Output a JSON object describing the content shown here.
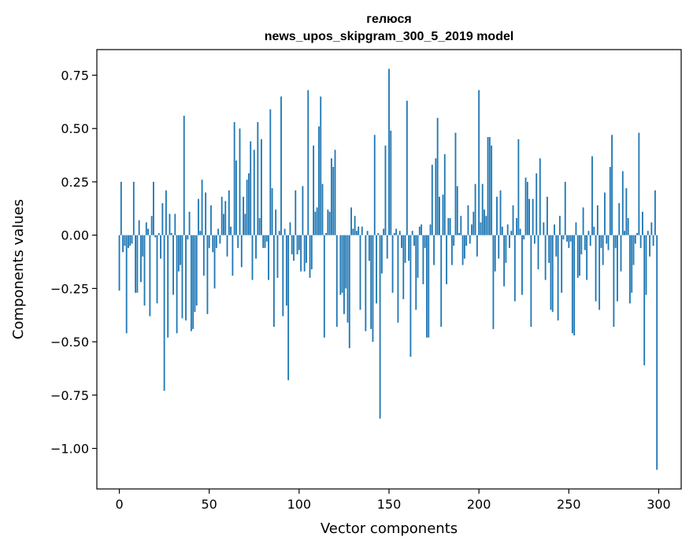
{
  "chart_data": {
    "type": "bar",
    "title": "гелюся",
    "subtitle": "news_upos_skipgram_300_5_2019 model",
    "xlabel": "Vector components",
    "ylabel": "Components values",
    "xlim": [
      -12.5,
      312.5
    ],
    "ylim": [
      -1.19,
      0.87
    ],
    "xticks": [
      0,
      50,
      100,
      150,
      200,
      250,
      300
    ],
    "yticks": [
      0.75,
      0.5,
      0.25,
      0.0,
      -0.25,
      -0.5,
      -0.75,
      -1.0
    ],
    "xtick_labels": [
      "0",
      "50",
      "100",
      "150",
      "200",
      "250",
      "300"
    ],
    "ytick_labels": [
      "0.75",
      "0.50",
      "0.25",
      "0.00",
      "−0.25",
      "−0.50",
      "−0.75",
      "−1.00"
    ],
    "bar_color": "#1f77b4",
    "values": [
      -0.26,
      0.25,
      -0.08,
      -0.05,
      -0.46,
      -0.06,
      -0.05,
      -0.04,
      0.25,
      -0.27,
      -0.27,
      0.07,
      -0.22,
      -0.1,
      -0.33,
      0.06,
      0.03,
      -0.38,
      0.09,
      0.25,
      -0.01,
      -0.32,
      0.01,
      -0.11,
      0.15,
      -0.73,
      0.21,
      -0.48,
      0.1,
      0.01,
      -0.28,
      0.1,
      -0.46,
      -0.17,
      -0.14,
      -0.39,
      0.56,
      -0.4,
      -0.02,
      0.11,
      -0.45,
      -0.44,
      -0.36,
      -0.33,
      0.17,
      0.02,
      0.26,
      -0.19,
      0.2,
      -0.37,
      -0.06,
      0.14,
      -0.08,
      -0.25,
      -0.06,
      0.03,
      -0.04,
      0.18,
      0.1,
      0.16,
      -0.1,
      0.21,
      0.04,
      -0.19,
      0.53,
      0.35,
      -0.06,
      0.5,
      -0.15,
      0.18,
      0.1,
      0.26,
      0.29,
      0.44,
      -0.21,
      0.4,
      -0.11,
      0.53,
      0.08,
      0.45,
      -0.06,
      -0.06,
      -0.03,
      -0.21,
      0.59,
      0.22,
      -0.43,
      0.12,
      -0.2,
      0.02,
      0.65,
      -0.38,
      0.03,
      -0.33,
      -0.68,
      0.06,
      -0.09,
      -0.12,
      0.21,
      -0.09,
      -0.07,
      -0.17,
      0.23,
      -0.17,
      -0.13,
      0.68,
      -0.2,
      -0.16,
      0.42,
      0.11,
      0.13,
      0.51,
      0.65,
      0.24,
      -0.48,
      0.01,
      0.12,
      0.11,
      0.36,
      0.32,
      0.4,
      -0.43,
      0.0,
      -0.28,
      -0.27,
      -0.37,
      -0.25,
      -0.41,
      -0.53,
      0.13,
      0.03,
      0.09,
      0.02,
      0.04,
      -0.35,
      0.04,
      0.0,
      -0.45,
      0.02,
      -0.12,
      -0.44,
      -0.5,
      0.47,
      -0.32,
      0.01,
      -0.86,
      -0.18,
      0.03,
      0.42,
      -0.11,
      0.78,
      0.49,
      -0.27,
      0.01,
      0.03,
      -0.41,
      0.02,
      -0.06,
      -0.3,
      -0.13,
      0.63,
      -0.12,
      -0.57,
      0.02,
      -0.05,
      -0.35,
      -0.2,
      0.04,
      0.05,
      -0.23,
      -0.06,
      -0.48,
      -0.48,
      0.05,
      0.33,
      -0.14,
      0.36,
      0.55,
      0.18,
      -0.43,
      0.19,
      0.38,
      -0.23,
      0.08,
      0.08,
      -0.14,
      -0.05,
      0.48,
      0.23,
      0.01,
      0.09,
      -0.14,
      -0.11,
      -0.05,
      0.14,
      -0.04,
      0.05,
      0.11,
      0.24,
      -0.1,
      0.68,
      0.06,
      0.24,
      0.12,
      0.09,
      0.46,
      0.46,
      0.42,
      -0.44,
      -0.17,
      0.18,
      -0.11,
      0.21,
      0.04,
      -0.24,
      -0.13,
      0.05,
      -0.06,
      0.02,
      0.14,
      -0.31,
      0.08,
      0.45,
      0.03,
      -0.28,
      -0.02,
      0.27,
      0.25,
      0.17,
      -0.43,
      0.17,
      -0.04,
      0.29,
      -0.16,
      0.36,
      0.0,
      0.06,
      -0.21,
      0.18,
      -0.13,
      -0.35,
      -0.36,
      0.05,
      -0.1,
      -0.4,
      0.09,
      -0.27,
      -0.02,
      0.25,
      -0.03,
      -0.06,
      -0.03,
      -0.46,
      -0.47,
      0.06,
      -0.2,
      -0.19,
      -0.09,
      0.13,
      -0.07,
      -0.21,
      0.02,
      -0.05,
      0.37,
      0.04,
      -0.31,
      0.14,
      -0.35,
      -0.06,
      -0.14,
      0.2,
      -0.04,
      -0.07,
      0.32,
      0.47,
      -0.43,
      -0.06,
      -0.31,
      0.15,
      -0.17,
      0.3,
      0.02,
      0.22,
      0.08,
      -0.32,
      -0.27,
      -0.14,
      -0.04,
      0.01,
      0.48,
      -0.06,
      0.11,
      -0.61,
      -0.28,
      0.02,
      -0.1,
      0.06,
      -0.05,
      0.21,
      -1.1
    ]
  }
}
